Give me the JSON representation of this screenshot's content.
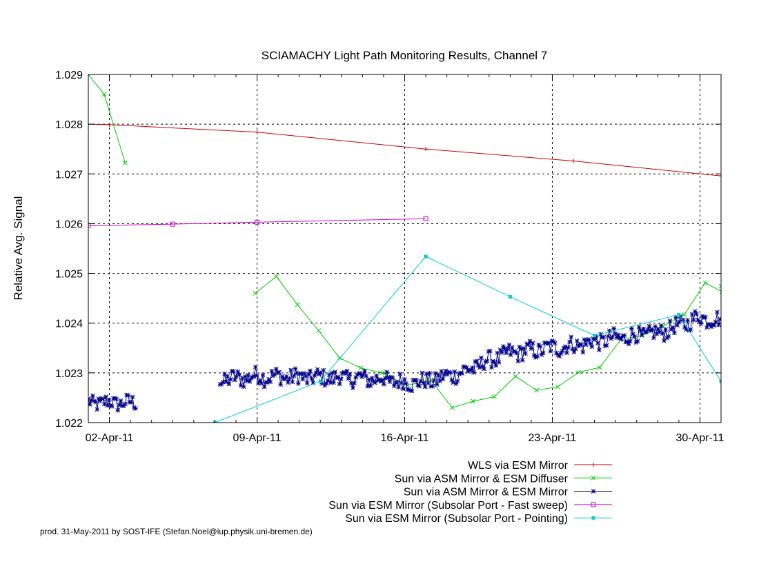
{
  "chart_data": {
    "type": "line",
    "title": "SCIAMACHY Light Path Monitoring Results, Channel 7",
    "ylabel": "Relative Avg. Signal",
    "xlabel": "",
    "xlim": [
      "2011-04-01",
      "2011-05-01"
    ],
    "ylim": [
      1.022,
      1.029
    ],
    "x_ticks": [
      {
        "date": "2011-04-02",
        "label": "02-Apr-11"
      },
      {
        "date": "2011-04-09",
        "label": "09-Apr-11"
      },
      {
        "date": "2011-04-16",
        "label": "16-Apr-11"
      },
      {
        "date": "2011-04-23",
        "label": "23-Apr-11"
      },
      {
        "date": "2011-04-30",
        "label": "30-Apr-11"
      }
    ],
    "y_ticks": [
      "1.022",
      "1.023",
      "1.024",
      "1.025",
      "1.026",
      "1.027",
      "1.028",
      "1.029"
    ],
    "grid": true,
    "legend_position": "bottom-right",
    "series": [
      {
        "name": "WLS via ESM Mirror",
        "color": "#cc0000",
        "marker": "plus",
        "points": [
          [
            "2011-04-01",
            1.028
          ],
          [
            "2011-04-02",
            1.02799
          ],
          [
            "2011-04-09",
            1.02784
          ],
          [
            "2011-04-17",
            1.0275
          ],
          [
            "2011-04-24",
            1.02726
          ],
          [
            "2011-05-01",
            1.02696
          ]
        ]
      },
      {
        "name": "Sun via ASM Mirror & ESM Diffuser",
        "color": "#00cc00",
        "marker": "x",
        "segments": [
          [
            [
              "2011-04-01",
              1.029
            ],
            [
              "2011-04-01 18:00",
              1.0286
            ],
            [
              "2011-04-02 18:00",
              1.02722
            ]
          ],
          [
            [
              "2011-04-08 22:00",
              1.0246
            ],
            [
              "2011-04-09 22:00",
              1.02494
            ],
            [
              "2011-04-10 22:00",
              1.02437
            ],
            [
              "2011-04-11 22:00",
              1.02385
            ],
            [
              "2011-04-12 22:00",
              1.0233
            ],
            [
              "2011-04-13 22:00",
              1.0231
            ],
            [
              "2011-04-14 22:00",
              1.023
            ],
            [
              "2011-04-16 03:00",
              1.02275
            ],
            [
              "2011-04-17 06:00",
              1.02285
            ],
            [
              "2011-04-18 06:00",
              1.0223
            ],
            [
              "2011-04-19 06:00",
              1.02243
            ],
            [
              "2011-04-20 06:00",
              1.02252
            ],
            [
              "2011-04-21 06:00",
              1.02293
            ],
            [
              "2011-04-22 06:00",
              1.02265
            ],
            [
              "2011-04-23 06:00",
              1.02272
            ],
            [
              "2011-04-24 06:00",
              1.02301
            ],
            [
              "2011-04-25 06:00",
              1.02311
            ],
            [
              "2011-04-26 06:00",
              1.02367
            ],
            [
              "2011-04-27 06:00",
              1.02375
            ],
            [
              "2011-04-28 06:00",
              1.02394
            ],
            [
              "2011-04-29 06:00",
              1.02417
            ],
            [
              "2011-04-30 06:00",
              1.02481
            ],
            [
              "2011-05-01 01:00",
              1.02463
            ],
            [
              "2011-05-01",
              1.02474
            ]
          ]
        ]
      },
      {
        "name": "Sun via ASM Mirror & ESM Mirror",
        "color": "#00008b",
        "marker": "star",
        "segments": [
          {
            "from": "2011-04-01",
            "to": "2011-04-03 06:00",
            "base": 1.0224,
            "amp": 0.00015
          },
          {
            "from": "2011-04-07 06:00",
            "to": "2011-05-01",
            "trend": [
              [
                "2011-04-07 06:00",
                1.02285
              ],
              [
                "2011-04-09",
                1.02293
              ],
              [
                "2011-04-11",
                1.02291
              ],
              [
                "2011-04-13",
                1.0229
              ],
              [
                "2011-04-15",
                1.02287
              ],
              [
                "2011-04-16",
                1.0228
              ],
              [
                "2011-04-17",
                1.02282
              ],
              [
                "2011-04-18",
                1.02293
              ],
              [
                "2011-04-19",
                1.02305
              ],
              [
                "2011-04-20",
                1.02325
              ],
              [
                "2011-04-21",
                1.0234
              ],
              [
                "2011-04-22",
                1.02345
              ],
              [
                "2011-04-24",
                1.02355
              ],
              [
                "2011-04-26",
                1.0237
              ],
              [
                "2011-04-28",
                1.0238
              ],
              [
                "2011-04-29",
                1.02395
              ],
              [
                "2011-04-30",
                1.02412
              ],
              [
                "2011-05-01",
                1.02405
              ]
            ],
            "amp": 0.00017
          }
        ]
      },
      {
        "name": "Sun via ESM Mirror (Subsolar Port - Fast sweep)",
        "color": "#cc00cc",
        "marker": "square",
        "points": [
          [
            "2011-04-01",
            1.02596
          ],
          [
            "2011-04-05",
            1.02599
          ],
          [
            "2011-04-09",
            1.02603
          ],
          [
            "2011-04-17",
            1.0261
          ]
        ]
      },
      {
        "name": "Sun via ESM Mirror (Subsolar Port - Pointing)",
        "color": "#00cccc",
        "marker": "filled-square",
        "points": [
          [
            "2011-04-07",
            1.022
          ],
          [
            "2011-04-12",
            1.02283
          ],
          [
            "2011-04-17",
            1.02534
          ],
          [
            "2011-04-21",
            1.02453
          ],
          [
            "2011-04-25",
            1.02375
          ],
          [
            "2011-04-29",
            1.02417
          ],
          [
            "2011-05-01",
            1.02283
          ]
        ]
      }
    ]
  },
  "footer": "prod. 31-May-2011 by SOST-IFE (Stefan.Noel@iup.physik.uni-bremen.de)"
}
